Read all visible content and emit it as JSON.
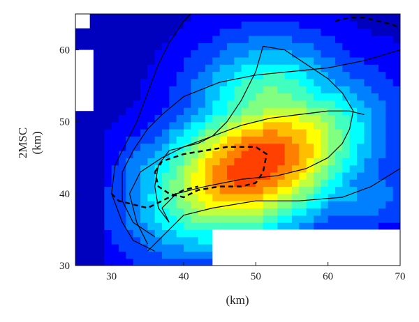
{
  "chart_data": {
    "type": "heatmap",
    "title": "",
    "xlabel": "(km)",
    "ylabel_line1": "2MSC",
    "ylabel_line2": "(km)",
    "xlim": [
      25,
      70
    ],
    "ylim": [
      30,
      65
    ],
    "x_ticks": [
      30,
      40,
      50,
      60,
      70
    ],
    "y_ticks": [
      30,
      40,
      50,
      60
    ],
    "x_tick_labels": [
      "30",
      "40",
      "50",
      "60",
      "70"
    ],
    "y_tick_labels": [
      "30",
      "40",
      "50",
      "60"
    ],
    "colormap": "jet",
    "colorbar": false,
    "grid": false,
    "peak_center_km": [
      50,
      44
    ],
    "peak_level": 0.72,
    "background_level": 0.06,
    "masked_regions": [
      {
        "x": [
          25,
          27
        ],
        "y": [
          63,
          65
        ]
      },
      {
        "x": [
          25,
          27.5
        ],
        "y": [
          51.5,
          60
        ]
      },
      {
        "x": [
          44,
          70
        ],
        "y": [
          30,
          35
        ]
      }
    ],
    "contours": [
      {
        "style": "solid",
        "points": [
          [
            36,
            32
          ],
          [
            33,
            33.5
          ],
          [
            31.5,
            36
          ],
          [
            30,
            40
          ],
          [
            30.5,
            44
          ],
          [
            32,
            47
          ],
          [
            33.5,
            50
          ],
          [
            35,
            54
          ],
          [
            36.5,
            58
          ],
          [
            38,
            61
          ],
          [
            40,
            64
          ],
          [
            41,
            65
          ]
        ]
      },
      {
        "style": "solid",
        "points": [
          [
            36,
            34
          ],
          [
            33,
            36
          ],
          [
            31.5,
            39
          ],
          [
            31.5,
            43
          ],
          [
            33,
            46
          ],
          [
            35,
            49
          ],
          [
            37,
            51
          ],
          [
            40,
            53.5
          ],
          [
            45,
            55.5
          ],
          [
            50,
            56.5
          ],
          [
            55,
            57
          ],
          [
            60,
            57.5
          ],
          [
            65,
            58.5
          ],
          [
            70,
            60
          ]
        ]
      },
      {
        "style": "solid",
        "points": [
          [
            35,
            33
          ],
          [
            33.5,
            36
          ],
          [
            32.5,
            40
          ],
          [
            34,
            43
          ],
          [
            37,
            45
          ],
          [
            40,
            46.5
          ],
          [
            44,
            48
          ],
          [
            48,
            49.5
          ],
          [
            52,
            50.5
          ],
          [
            56,
            51
          ],
          [
            60,
            51.5
          ],
          [
            63,
            51.5
          ],
          [
            65,
            51
          ]
        ]
      },
      {
        "style": "solid",
        "points": [
          [
            38,
            36
          ],
          [
            37,
            38
          ],
          [
            39,
            40
          ],
          [
            43,
            41
          ],
          [
            48,
            42
          ],
          [
            53,
            42.5
          ],
          [
            57,
            43.5
          ],
          [
            60,
            45
          ],
          [
            62,
            47
          ],
          [
            63,
            49
          ],
          [
            63.5,
            51.5
          ],
          [
            62,
            54
          ],
          [
            60,
            56
          ],
          [
            57,
            58
          ],
          [
            54,
            60
          ],
          [
            51,
            60.5
          ],
          [
            50,
            57
          ],
          [
            48,
            53
          ],
          [
            46,
            50
          ],
          [
            44,
            48
          ],
          [
            42,
            47
          ],
          [
            40,
            46.5
          ],
          [
            38,
            46
          ],
          [
            36.5,
            44
          ],
          [
            36,
            41
          ],
          [
            36.5,
            38
          ],
          [
            38,
            36
          ]
        ]
      },
      {
        "style": "solid",
        "points": [
          [
            35,
            32
          ],
          [
            38,
            35
          ],
          [
            40,
            37
          ],
          [
            44,
            38
          ],
          [
            50,
            39
          ],
          [
            56,
            39
          ],
          [
            62,
            39.5
          ],
          [
            66,
            41
          ],
          [
            70,
            43.5
          ]
        ]
      },
      {
        "style": "dashed",
        "points": [
          [
            36,
            43
          ],
          [
            37,
            44.5
          ],
          [
            40,
            45.5
          ],
          [
            43,
            46
          ],
          [
            46,
            46.5
          ],
          [
            48,
            46.5
          ],
          [
            50,
            46.5
          ],
          [
            51.5,
            45.5
          ],
          [
            51,
            43
          ],
          [
            50,
            41.5
          ],
          [
            48,
            41
          ],
          [
            45,
            41
          ],
          [
            42,
            40.5
          ],
          [
            40,
            39.5
          ],
          [
            38,
            40
          ],
          [
            36.5,
            41
          ],
          [
            36,
            43
          ]
        ]
      },
      {
        "style": "dashed",
        "points": [
          [
            30,
            40
          ],
          [
            31,
            39
          ],
          [
            33,
            38.5
          ],
          [
            35,
            38
          ],
          [
            37,
            39
          ],
          [
            40,
            40.5
          ],
          [
            42,
            41
          ]
        ]
      },
      {
        "style": "dashed",
        "points": [
          [
            61,
            64
          ],
          [
            63,
            64.5
          ],
          [
            65,
            64.5
          ],
          [
            67,
            64
          ],
          [
            69,
            63.5
          ],
          [
            70,
            63
          ]
        ]
      }
    ]
  }
}
